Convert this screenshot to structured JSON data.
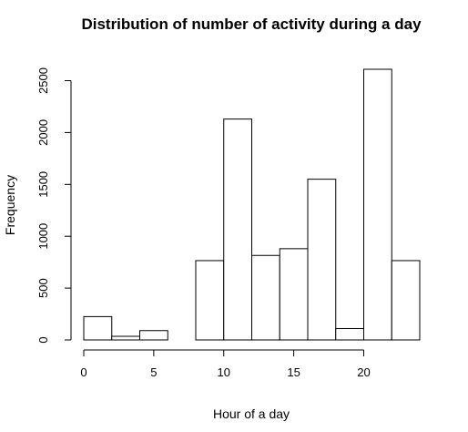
{
  "chart_data": {
    "type": "bar",
    "title": "Distribution of number of activity during a day",
    "xlabel": "Hour of a day",
    "ylabel": "Frequency",
    "bin_edges": [
      0,
      2,
      4,
      6,
      8,
      10,
      12,
      14,
      16,
      18,
      20,
      22,
      24
    ],
    "values": [
      225,
      35,
      90,
      0,
      765,
      2130,
      815,
      880,
      1550,
      110,
      2610,
      765
    ],
    "xlim": [
      0,
      24
    ],
    "ylim": [
      0,
      2610
    ],
    "x_ticks": [
      0,
      5,
      10,
      15,
      20
    ],
    "y_ticks": [
      0,
      500,
      1000,
      1500,
      2000,
      2500
    ],
    "grid": false,
    "legend": "none",
    "colors": {
      "bar_fill": "#ffffff",
      "bar_stroke": "#000000"
    }
  }
}
